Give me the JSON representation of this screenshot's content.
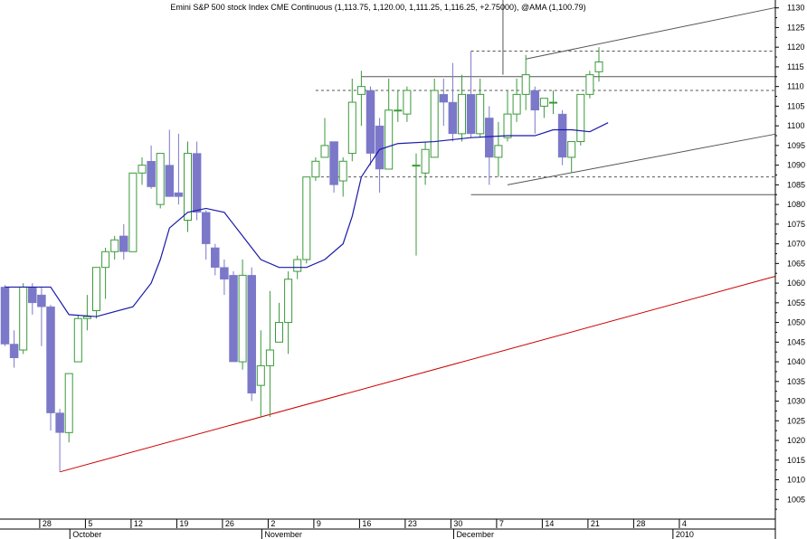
{
  "chart_data": {
    "type": "candlestick",
    "title": "Emini S&P 500 stock Index CME Continuous (1,113.75, 1,120.00, 1,111.25, 1,116.25, +2.75000), @AMA (1,100.79)",
    "ylim": [
      1000,
      1132
    ],
    "y_ticks": [
      1005,
      1010,
      1015,
      1020,
      1025,
      1030,
      1035,
      1040,
      1045,
      1050,
      1055,
      1060,
      1065,
      1070,
      1075,
      1080,
      1085,
      1090,
      1095,
      1100,
      1105,
      1110,
      1115,
      1120,
      1125,
      1130
    ],
    "x_ticks": [
      {
        "i": 4,
        "label": "28"
      },
      {
        "i": 9,
        "label": "5"
      },
      {
        "i": 14,
        "label": "12"
      },
      {
        "i": 19,
        "label": "19"
      },
      {
        "i": 24,
        "label": "26"
      },
      {
        "i": 29,
        "label": "2"
      },
      {
        "i": 34,
        "label": "9"
      },
      {
        "i": 39,
        "label": "16"
      },
      {
        "i": 44,
        "label": "23"
      },
      {
        "i": 49,
        "label": "30"
      },
      {
        "i": 54,
        "label": "7"
      },
      {
        "i": 59,
        "label": "14"
      },
      {
        "i": 64,
        "label": "21"
      },
      {
        "i": 69,
        "label": "28"
      },
      {
        "i": 74,
        "label": "4"
      }
    ],
    "months": [
      {
        "i": 7.5,
        "label": "October"
      },
      {
        "i": 28.5,
        "label": "November"
      },
      {
        "i": 49.5,
        "label": "December"
      },
      {
        "i": 73.5,
        "label": "2010"
      }
    ],
    "candles": [
      {
        "o": 1059,
        "h": 1059.5,
        "l": 1044,
        "c": 1044.5
      },
      {
        "o": 1044.5,
        "h": 1048,
        "l": 1038.5,
        "c": 1041
      },
      {
        "o": 1043,
        "h": 1060,
        "l": 1042,
        "c": 1059
      },
      {
        "o": 1059,
        "h": 1060,
        "l": 1052,
        "c": 1055
      },
      {
        "o": 1057,
        "h": 1059,
        "l": 1044,
        "c": 1054
      },
      {
        "o": 1054,
        "h": 1054.5,
        "l": 1022.5,
        "c": 1027
      },
      {
        "o": 1027,
        "h": 1028,
        "l": 1012,
        "c": 1022
      },
      {
        "o": 1022,
        "h": 1037,
        "l": 1019.5,
        "c": 1037
      },
      {
        "o": 1040,
        "h": 1052,
        "l": 1040,
        "c": 1051
      },
      {
        "o": 1051,
        "h": 1057,
        "l": 1048,
        "c": 1051.5
      },
      {
        "o": 1053,
        "h": 1064,
        "l": 1051,
        "c": 1064
      },
      {
        "o": 1064,
        "h": 1069,
        "l": 1056,
        "c": 1068
      },
      {
        "o": 1068,
        "h": 1072,
        "l": 1066,
        "c": 1071
      },
      {
        "o": 1072,
        "h": 1075,
        "l": 1066,
        "c": 1068
      },
      {
        "o": 1068,
        "h": 1087,
        "l": 1068,
        "c": 1088
      },
      {
        "o": 1088,
        "h": 1092,
        "l": 1085,
        "c": 1090
      },
      {
        "o": 1091,
        "h": 1095,
        "l": 1084,
        "c": 1084.5
      },
      {
        "o": 1080,
        "h": 1093,
        "l": 1079,
        "c": 1093
      },
      {
        "o": 1090,
        "h": 1099,
        "l": 1082,
        "c": 1082
      },
      {
        "o": 1083,
        "h": 1098,
        "l": 1080,
        "c": 1082
      },
      {
        "o": 1076,
        "h": 1096,
        "l": 1073,
        "c": 1093
      },
      {
        "o": 1093,
        "h": 1096,
        "l": 1076,
        "c": 1078
      },
      {
        "o": 1078,
        "h": 1078.5,
        "l": 1066,
        "c": 1070
      },
      {
        "o": 1069,
        "h": 1070,
        "l": 1062,
        "c": 1064
      },
      {
        "o": 1064,
        "h": 1066,
        "l": 1057,
        "c": 1061
      },
      {
        "o": 1062,
        "h": 1063,
        "l": 1040,
        "c": 1040
      },
      {
        "o": 1040,
        "h": 1066,
        "l": 1038,
        "c": 1062
      },
      {
        "o": 1062,
        "h": 1064,
        "l": 1030,
        "c": 1032
      },
      {
        "o": 1034,
        "h": 1048,
        "l": 1026,
        "c": 1039
      },
      {
        "o": 1039,
        "h": 1058,
        "l": 1026,
        "c": 1043
      },
      {
        "o": 1045,
        "h": 1055,
        "l": 1045,
        "c": 1050
      },
      {
        "o": 1050,
        "h": 1063,
        "l": 1042,
        "c": 1061
      },
      {
        "o": 1063,
        "h": 1067,
        "l": 1061,
        "c": 1066
      },
      {
        "o": 1066,
        "h": 1087,
        "l": 1065,
        "c": 1087
      },
      {
        "o": 1087,
        "h": 1092,
        "l": 1086,
        "c": 1091
      },
      {
        "o": 1092,
        "h": 1102,
        "l": 1092,
        "c": 1095
      },
      {
        "o": 1096,
        "h": 1096,
        "l": 1083,
        "c": 1085
      },
      {
        "o": 1086,
        "h": 1092,
        "l": 1082,
        "c": 1091
      },
      {
        "o": 1093,
        "h": 1112,
        "l": 1091,
        "c": 1106
      },
      {
        "o": 1108,
        "h": 1114,
        "l": 1100,
        "c": 1110
      },
      {
        "o": 1109,
        "h": 1110,
        "l": 1090,
        "c": 1093
      },
      {
        "o": 1100,
        "h": 1102,
        "l": 1083,
        "c": 1089
      },
      {
        "o": 1089,
        "h": 1112,
        "l": 1089,
        "c": 1104
      },
      {
        "o": 1104,
        "h": 1109,
        "l": 1101,
        "c": 1104
      },
      {
        "o": 1103,
        "h": 1110,
        "l": 1101,
        "c": 1109
      },
      {
        "o": 1090,
        "h": 1093,
        "l": 1067,
        "c": 1090
      },
      {
        "o": 1088,
        "h": 1096,
        "l": 1085,
        "c": 1094
      },
      {
        "o": 1092,
        "h": 1112,
        "l": 1092,
        "c": 1109
      },
      {
        "o": 1108,
        "h": 1112,
        "l": 1100,
        "c": 1106
      },
      {
        "o": 1106,
        "h": 1116,
        "l": 1096,
        "c": 1098
      },
      {
        "o": 1098,
        "h": 1113,
        "l": 1096,
        "c": 1108
      },
      {
        "o": 1108,
        "h": 1119,
        "l": 1097,
        "c": 1098
      },
      {
        "o": 1098,
        "h": 1112,
        "l": 1097,
        "c": 1108
      },
      {
        "o": 1102,
        "h": 1105,
        "l": 1085,
        "c": 1092
      },
      {
        "o": 1092,
        "h": 1101,
        "l": 1087,
        "c": 1095
      },
      {
        "o": 1097,
        "h": 1109,
        "l": 1096,
        "c": 1103
      },
      {
        "o": 1103,
        "h": 1112,
        "l": 1101,
        "c": 1108
      },
      {
        "o": 1108,
        "h": 1118,
        "l": 1104,
        "c": 1113
      },
      {
        "o": 1109,
        "h": 1110,
        "l": 1098,
        "c": 1104
      },
      {
        "o": 1105,
        "h": 1107,
        "l": 1102,
        "c": 1107
      },
      {
        "o": 1106,
        "h": 1109,
        "l": 1103,
        "c": 1106
      },
      {
        "o": 1103,
        "h": 1104,
        "l": 1090,
        "c": 1092
      },
      {
        "o": 1092,
        "h": 1096,
        "l": 1088,
        "c": 1096
      },
      {
        "o": 1096,
        "h": 1108,
        "l": 1095,
        "c": 1108
      },
      {
        "o": 1108,
        "h": 1114,
        "l": 1107,
        "c": 1113
      },
      {
        "o": 1113.75,
        "h": 1120,
        "l": 1111.25,
        "c": 1116.25
      }
    ],
    "ama": [
      [
        0,
        1059
      ],
      [
        5,
        1059
      ],
      [
        7,
        1052
      ],
      [
        10,
        1051.5
      ],
      [
        14,
        1054
      ],
      [
        16,
        1060
      ],
      [
        17,
        1066
      ],
      [
        18,
        1074
      ],
      [
        20,
        1078
      ],
      [
        22,
        1079
      ],
      [
        24,
        1078
      ],
      [
        26,
        1072
      ],
      [
        28,
        1066
      ],
      [
        30,
        1064
      ],
      [
        33,
        1064
      ],
      [
        35,
        1066
      ],
      [
        37,
        1070
      ],
      [
        38,
        1077
      ],
      [
        39,
        1087
      ],
      [
        41,
        1094
      ],
      [
        43,
        1095.5
      ],
      [
        47,
        1096
      ],
      [
        51,
        1097
      ],
      [
        55,
        1097.5
      ],
      [
        58,
        1097.5
      ],
      [
        60,
        1099
      ],
      [
        62,
        1099
      ],
      [
        64,
        1098.5
      ],
      [
        66,
        1100.79
      ]
    ],
    "lines": [
      {
        "type": "solid",
        "color": "#cc0000",
        "p1": [
          6,
          1012
        ],
        "p2": [
          80,
          1059
        ]
      },
      {
        "type": "solid",
        "color": "#555555",
        "p1": [
          51,
          1082.5
        ],
        "p2": [
          80,
          1082.5
        ],
        "label": "support-1082"
      },
      {
        "type": "solid",
        "color": "#555555",
        "p1": [
          39,
          1112.5
        ],
        "p2": [
          80,
          1112.5
        ],
        "label": "resistance-1112"
      },
      {
        "type": "solid",
        "color": "#555555",
        "p1": [
          55,
          1085
        ],
        "p2": [
          80,
          1096
        ]
      },
      {
        "type": "solid",
        "color": "#555555",
        "p1": [
          57,
          1117
        ],
        "p2": [
          80,
          1128
        ]
      },
      {
        "type": "dashed",
        "color": "#555555",
        "p1": [
          51,
          1119
        ],
        "p2": [
          80,
          1119
        ]
      },
      {
        "type": "dashed",
        "color": "#555555",
        "p1": [
          34,
          1109
        ],
        "p2": [
          80,
          1109
        ]
      },
      {
        "type": "dashed",
        "color": "#555555",
        "p1": [
          34,
          1087
        ],
        "p2": [
          80,
          1087
        ]
      },
      {
        "type": "spike",
        "color": "#555555",
        "p1": [
          54.5,
          1113
        ],
        "p2": [
          54.5,
          1132
        ]
      }
    ],
    "colors": {
      "up": "#3a9a3a",
      "down": "#7b78c9",
      "ama": "#1a1aaa",
      "trend": "#cc0000",
      "grid": "#8a8a8a"
    }
  }
}
